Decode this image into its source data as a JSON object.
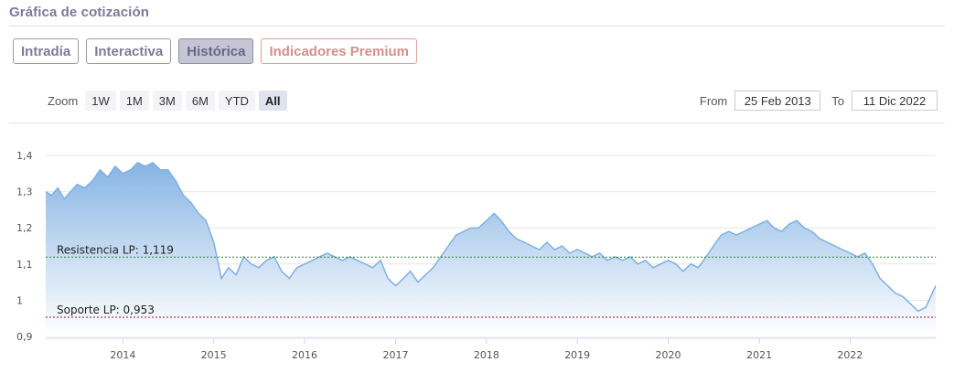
{
  "header": {
    "title": "Gráfica de cotización"
  },
  "tabs": [
    {
      "label": "Intradía",
      "active": false
    },
    {
      "label": "Interactiva",
      "active": false
    },
    {
      "label": "Histórica",
      "active": true
    },
    {
      "label": "Indicadores Premium",
      "active": false
    }
  ],
  "zoom": {
    "label": "Zoom",
    "buttons": [
      {
        "label": "1W",
        "active": false
      },
      {
        "label": "1M",
        "active": false
      },
      {
        "label": "3M",
        "active": false
      },
      {
        "label": "6M",
        "active": false
      },
      {
        "label": "YTD",
        "active": false
      },
      {
        "label": "All",
        "active": true
      }
    ]
  },
  "range": {
    "from_label": "From",
    "from_value": "25 Feb 2013",
    "to_label": "To",
    "to_value": "11 Dic 2022"
  },
  "colors": {
    "line": "#7fb0e2",
    "fill_top": "#7fb0e2",
    "fill_bottom": "#ffffff",
    "resistance": "#2e7d32",
    "support": "#8b1a3a"
  },
  "chart_data": {
    "type": "area",
    "ylim": [
      0.9,
      1.4
    ],
    "xlim": [
      "2013-02-25",
      "2022-12-11"
    ],
    "y_ticks": [
      "0,9",
      "1",
      "1,1",
      "1,2",
      "1,3",
      "1,4"
    ],
    "y_tick_values": [
      0.9,
      1.0,
      1.1,
      1.2,
      1.3,
      1.4
    ],
    "x_ticks": [
      "2014",
      "2015",
      "2016",
      "2017",
      "2018",
      "2019",
      "2020",
      "2021",
      "2022"
    ],
    "x_tick_dates": [
      "2014-01-01",
      "2015-01-01",
      "2016-01-01",
      "2017-01-01",
      "2018-01-01",
      "2019-01-01",
      "2020-01-01",
      "2021-01-01",
      "2022-01-01"
    ],
    "grid": "horizontal",
    "reference_lines": [
      {
        "label": "Resistencia LP: 1,119",
        "value": 1.119,
        "style": "dotted"
      },
      {
        "label": "Soporte LP: 0,953",
        "value": 0.953,
        "style": "dotted"
      }
    ],
    "series": [
      {
        "x": [
          "2013-02-25",
          "2013-03-20",
          "2013-04-15",
          "2013-05-10",
          "2013-06-05",
          "2013-07-01",
          "2013-08-01",
          "2013-09-01",
          "2013-10-01",
          "2013-11-01",
          "2013-12-01",
          "2014-01-01",
          "2014-02-01",
          "2014-03-01",
          "2014-04-01",
          "2014-05-01",
          "2014-06-01",
          "2014-07-01",
          "2014-08-01",
          "2014-09-01",
          "2014-10-01",
          "2014-11-01",
          "2014-12-01",
          "2015-01-01",
          "2015-02-01",
          "2015-03-01",
          "2015-04-01",
          "2015-05-01",
          "2015-06-01",
          "2015-07-01",
          "2015-08-01",
          "2015-09-01",
          "2015-10-01",
          "2015-11-01",
          "2015-12-01",
          "2016-01-01",
          "2016-02-01",
          "2016-03-01",
          "2016-04-01",
          "2016-05-01",
          "2016-06-01",
          "2016-07-01",
          "2016-08-01",
          "2016-09-01",
          "2016-10-01",
          "2016-11-01",
          "2016-12-01",
          "2017-01-01",
          "2017-02-01",
          "2017-03-01",
          "2017-04-01",
          "2017-05-01",
          "2017-06-01",
          "2017-07-01",
          "2017-08-01",
          "2017-09-01",
          "2017-10-01",
          "2017-11-01",
          "2017-12-01",
          "2018-01-01",
          "2018-02-01",
          "2018-03-01",
          "2018-04-01",
          "2018-05-01",
          "2018-06-01",
          "2018-07-01",
          "2018-08-01",
          "2018-09-01",
          "2018-10-01",
          "2018-11-01",
          "2018-12-01",
          "2019-01-01",
          "2019-02-01",
          "2019-03-01",
          "2019-04-01",
          "2019-05-01",
          "2019-06-01",
          "2019-07-01",
          "2019-08-01",
          "2019-09-01",
          "2019-10-01",
          "2019-11-01",
          "2019-12-01",
          "2020-01-01",
          "2020-02-01",
          "2020-03-01",
          "2020-04-01",
          "2020-05-01",
          "2020-06-01",
          "2020-07-01",
          "2020-08-01",
          "2020-09-01",
          "2020-10-01",
          "2020-11-01",
          "2020-12-01",
          "2021-01-01",
          "2021-02-01",
          "2021-03-01",
          "2021-04-01",
          "2021-05-01",
          "2021-06-01",
          "2021-07-01",
          "2021-08-01",
          "2021-09-01",
          "2021-10-01",
          "2021-11-01",
          "2021-12-01",
          "2022-01-01",
          "2022-02-01",
          "2022-03-01",
          "2022-04-01",
          "2022-05-01",
          "2022-06-01",
          "2022-07-01",
          "2022-08-01",
          "2022-09-01",
          "2022-10-01",
          "2022-11-01",
          "2022-12-11"
        ],
        "values": [
          1.3,
          1.29,
          1.31,
          1.28,
          1.3,
          1.32,
          1.31,
          1.33,
          1.36,
          1.34,
          1.37,
          1.35,
          1.36,
          1.38,
          1.37,
          1.38,
          1.36,
          1.36,
          1.33,
          1.29,
          1.27,
          1.24,
          1.22,
          1.16,
          1.06,
          1.09,
          1.07,
          1.12,
          1.1,
          1.09,
          1.11,
          1.12,
          1.08,
          1.06,
          1.09,
          1.1,
          1.11,
          1.12,
          1.13,
          1.12,
          1.11,
          1.12,
          1.11,
          1.1,
          1.09,
          1.11,
          1.06,
          1.04,
          1.06,
          1.08,
          1.05,
          1.07,
          1.09,
          1.12,
          1.15,
          1.18,
          1.19,
          1.2,
          1.2,
          1.22,
          1.24,
          1.22,
          1.19,
          1.17,
          1.16,
          1.15,
          1.14,
          1.16,
          1.14,
          1.15,
          1.13,
          1.14,
          1.13,
          1.12,
          1.13,
          1.11,
          1.12,
          1.11,
          1.12,
          1.1,
          1.11,
          1.09,
          1.1,
          1.11,
          1.1,
          1.08,
          1.1,
          1.09,
          1.12,
          1.15,
          1.18,
          1.19,
          1.18,
          1.19,
          1.2,
          1.21,
          1.22,
          1.2,
          1.19,
          1.21,
          1.22,
          1.2,
          1.19,
          1.17,
          1.16,
          1.15,
          1.14,
          1.13,
          1.12,
          1.13,
          1.1,
          1.06,
          1.04,
          1.02,
          1.01,
          0.99,
          0.97,
          0.98,
          1.04
        ]
      }
    ]
  }
}
